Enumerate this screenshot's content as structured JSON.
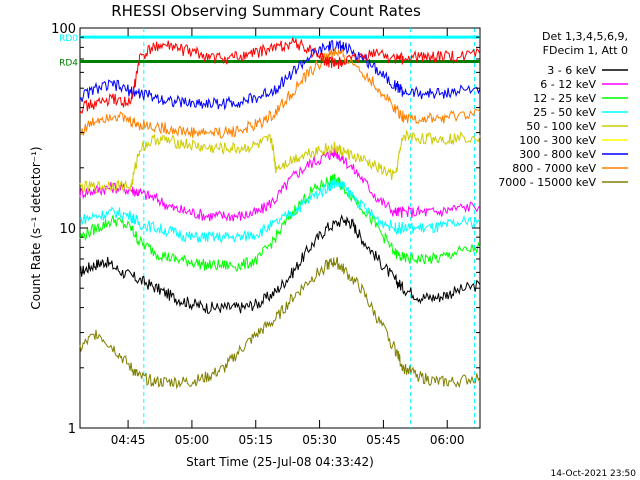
{
  "chart_data": {
    "type": "line",
    "title": "RHESSI Observing Summary Count Rates",
    "xlabel": "Start Time (25-Jul-08 04:33:42)",
    "ylabel": "Count Rate (s⁻¹ detector⁻¹)",
    "x_unit": "minutes after 04:33:42",
    "xlim": [
      0,
      94
    ],
    "ylim": [
      1,
      100
    ],
    "yscale": "log",
    "x_ticks": [
      {
        "x": 11.3,
        "label": "04:45"
      },
      {
        "x": 26.3,
        "label": "05:00"
      },
      {
        "x": 41.3,
        "label": "05:15"
      },
      {
        "x": 56.3,
        "label": "05:30"
      },
      {
        "x": 71.3,
        "label": "05:45"
      },
      {
        "x": 86.3,
        "label": "06:00"
      }
    ],
    "y_ticks": [
      {
        "y": 1,
        "label": "1"
      },
      {
        "y": 10,
        "label": "10"
      },
      {
        "y": 100,
        "label": "100"
      }
    ],
    "legend_position": "right",
    "legend_header": [
      "Det 1,3,4,5,6,9,",
      "FDecim 1, Att 0"
    ],
    "series": [
      {
        "name": "3 - 6 keV",
        "color": "#000000",
        "values": [
          [
            0,
            6
          ],
          [
            3,
            6.5
          ],
          [
            6,
            6.8
          ],
          [
            10,
            6
          ],
          [
            14,
            5.5
          ],
          [
            18,
            5
          ],
          [
            22,
            4.5
          ],
          [
            26,
            4.2
          ],
          [
            30,
            4
          ],
          [
            34,
            4
          ],
          [
            38,
            4
          ],
          [
            42,
            4.2
          ],
          [
            46,
            4.8
          ],
          [
            50,
            6
          ],
          [
            54,
            8
          ],
          [
            58,
            10
          ],
          [
            62,
            11
          ],
          [
            64,
            10.5
          ],
          [
            66,
            9
          ],
          [
            70,
            7
          ],
          [
            74,
            5.5
          ],
          [
            76,
            5
          ],
          [
            80,
            4.5
          ],
          [
            84,
            4.5
          ],
          [
            88,
            4.8
          ],
          [
            94,
            5.2
          ]
        ]
      },
      {
        "name": "6 - 12 keV",
        "color": "#ff00ff",
        "values": [
          [
            0,
            15
          ],
          [
            4,
            15.5
          ],
          [
            8,
            16
          ],
          [
            12,
            15.5
          ],
          [
            14,
            15
          ],
          [
            18,
            14
          ],
          [
            22,
            12.5
          ],
          [
            26,
            12
          ],
          [
            30,
            11.5
          ],
          [
            34,
            11.5
          ],
          [
            38,
            11.5
          ],
          [
            42,
            12
          ],
          [
            46,
            14
          ],
          [
            50,
            18
          ],
          [
            54,
            21
          ],
          [
            58,
            23
          ],
          [
            60,
            24
          ],
          [
            62,
            22
          ],
          [
            66,
            18
          ],
          [
            70,
            14
          ],
          [
            74,
            12
          ],
          [
            76,
            12
          ],
          [
            80,
            12
          ],
          [
            84,
            12
          ],
          [
            88,
            12.5
          ],
          [
            94,
            13
          ]
        ]
      },
      {
        "name": "12 - 25 keV",
        "color": "#00ff00",
        "values": [
          [
            0,
            9
          ],
          [
            4,
            10
          ],
          [
            8,
            11
          ],
          [
            12,
            10
          ],
          [
            14,
            8.5
          ],
          [
            18,
            7.5
          ],
          [
            22,
            7
          ],
          [
            26,
            6.8
          ],
          [
            30,
            6.5
          ],
          [
            34,
            6.5
          ],
          [
            38,
            6.5
          ],
          [
            42,
            7
          ],
          [
            46,
            9
          ],
          [
            50,
            12
          ],
          [
            54,
            15
          ],
          [
            58,
            17
          ],
          [
            60,
            17.5
          ],
          [
            62,
            16
          ],
          [
            66,
            13
          ],
          [
            70,
            10
          ],
          [
            74,
            7.5
          ],
          [
            76,
            7
          ],
          [
            80,
            7
          ],
          [
            84,
            7
          ],
          [
            88,
            7.5
          ],
          [
            94,
            8
          ]
        ]
      },
      {
        "name": "25 - 50 keV",
        "color": "#00ffff",
        "values": [
          [
            0,
            11
          ],
          [
            4,
            11.5
          ],
          [
            8,
            12
          ],
          [
            12,
            11.5
          ],
          [
            14,
            10.5
          ],
          [
            18,
            10
          ],
          [
            22,
            9.5
          ],
          [
            26,
            9
          ],
          [
            30,
            9
          ],
          [
            34,
            9
          ],
          [
            38,
            9
          ],
          [
            42,
            9.5
          ],
          [
            46,
            10.5
          ],
          [
            50,
            12
          ],
          [
            54,
            14
          ],
          [
            58,
            16
          ],
          [
            60,
            17
          ],
          [
            62,
            16
          ],
          [
            66,
            13
          ],
          [
            70,
            11
          ],
          [
            74,
            10
          ],
          [
            76,
            10
          ],
          [
            80,
            10
          ],
          [
            84,
            10
          ],
          [
            88,
            10.5
          ],
          [
            94,
            11
          ]
        ]
      },
      {
        "name": "50 - 100 keV",
        "color": "#cccc00",
        "values": [
          [
            0,
            16
          ],
          [
            4,
            16
          ],
          [
            8,
            16.5
          ],
          [
            12,
            16
          ],
          [
            14,
            25
          ],
          [
            18,
            28
          ],
          [
            22,
            27
          ],
          [
            26,
            26
          ],
          [
            30,
            25
          ],
          [
            34,
            25
          ],
          [
            38,
            25
          ],
          [
            42,
            26
          ],
          [
            45,
            28
          ],
          [
            46,
            20
          ],
          [
            50,
            22
          ],
          [
            54,
            24
          ],
          [
            58,
            25
          ],
          [
            60,
            25
          ],
          [
            62,
            24
          ],
          [
            66,
            22
          ],
          [
            70,
            20
          ],
          [
            74,
            18
          ],
          [
            76,
            29
          ],
          [
            80,
            28
          ],
          [
            84,
            28
          ],
          [
            88,
            28
          ],
          [
            94,
            29
          ]
        ]
      },
      {
        "name": "100 - 300 keV",
        "color": "#ffff00",
        "values": []
      },
      {
        "name": "300 - 800 keV",
        "color": "#0000ff",
        "values": [
          [
            0,
            45
          ],
          [
            4,
            50
          ],
          [
            8,
            52
          ],
          [
            12,
            48
          ],
          [
            14,
            47
          ],
          [
            18,
            45
          ],
          [
            22,
            43
          ],
          [
            26,
            42
          ],
          [
            30,
            42
          ],
          [
            34,
            42
          ],
          [
            38,
            43
          ],
          [
            42,
            45
          ],
          [
            46,
            50
          ],
          [
            50,
            60
          ],
          [
            54,
            72
          ],
          [
            58,
            80
          ],
          [
            60,
            82
          ],
          [
            62,
            80
          ],
          [
            66,
            72
          ],
          [
            70,
            62
          ],
          [
            74,
            52
          ],
          [
            76,
            48
          ],
          [
            80,
            47
          ],
          [
            84,
            47
          ],
          [
            88,
            48
          ],
          [
            94,
            50
          ]
        ]
      },
      {
        "name": "800 - 7000 keV",
        "color": "#ff8000",
        "values": [
          [
            0,
            30
          ],
          [
            4,
            35
          ],
          [
            8,
            37
          ],
          [
            12,
            34
          ],
          [
            14,
            33
          ],
          [
            18,
            32
          ],
          [
            22,
            31
          ],
          [
            26,
            30
          ],
          [
            30,
            30
          ],
          [
            34,
            30
          ],
          [
            38,
            31
          ],
          [
            42,
            33
          ],
          [
            46,
            38
          ],
          [
            50,
            48
          ],
          [
            54,
            60
          ],
          [
            58,
            72
          ],
          [
            60,
            76
          ],
          [
            62,
            72
          ],
          [
            66,
            62
          ],
          [
            70,
            50
          ],
          [
            74,
            40
          ],
          [
            76,
            36
          ],
          [
            80,
            35
          ],
          [
            84,
            35
          ],
          [
            88,
            36
          ],
          [
            94,
            38
          ]
        ]
      },
      {
        "name": "7000 - 15000 keV",
        "color": "#808000",
        "values": [
          [
            0,
            2.5
          ],
          [
            4,
            3
          ],
          [
            8,
            2.5
          ],
          [
            12,
            2
          ],
          [
            14,
            1.8
          ],
          [
            18,
            1.7
          ],
          [
            22,
            1.7
          ],
          [
            26,
            1.7
          ],
          [
            30,
            1.8
          ],
          [
            34,
            2
          ],
          [
            38,
            2.5
          ],
          [
            42,
            3
          ],
          [
            46,
            3.5
          ],
          [
            50,
            4.5
          ],
          [
            54,
            5.5
          ],
          [
            58,
            6.5
          ],
          [
            60,
            6.8
          ],
          [
            62,
            6.2
          ],
          [
            66,
            5
          ],
          [
            70,
            3.5
          ],
          [
            74,
            2.5
          ],
          [
            76,
            2
          ],
          [
            80,
            1.8
          ],
          [
            84,
            1.7
          ],
          [
            88,
            1.7
          ],
          [
            94,
            1.8
          ]
        ]
      }
    ],
    "extra_series": [
      {
        "name": "red",
        "color": "#ff0000",
        "values": [
          [
            0,
            40
          ],
          [
            4,
            42
          ],
          [
            8,
            44
          ],
          [
            12,
            42
          ],
          [
            14,
            70
          ],
          [
            18,
            82
          ],
          [
            22,
            80
          ],
          [
            26,
            76
          ],
          [
            30,
            72
          ],
          [
            34,
            70
          ],
          [
            38,
            72
          ],
          [
            42,
            76
          ],
          [
            46,
            80
          ],
          [
            50,
            85
          ],
          [
            54,
            78
          ],
          [
            58,
            68
          ],
          [
            60,
            66
          ],
          [
            62,
            68
          ],
          [
            66,
            70
          ],
          [
            70,
            76
          ],
          [
            74,
            70
          ],
          [
            76,
            70
          ],
          [
            80,
            72
          ],
          [
            84,
            72
          ],
          [
            88,
            72
          ],
          [
            94,
            74
          ]
        ]
      }
    ],
    "annotations": [
      "RD0",
      "RD4"
    ],
    "flag_levels": [
      {
        "name": "RD0",
        "color": "#00ffff",
        "y": 90
      },
      {
        "name": "RD4",
        "color": "#008000",
        "y": 68
      }
    ],
    "reference_lines": [
      {
        "x": 15,
        "color": "#00ffff"
      },
      {
        "x": 77.7,
        "color": "#00ffff"
      },
      {
        "x": 92.7,
        "color": "#00ffff"
      }
    ],
    "footer": "14-Oct-2021 23:50"
  }
}
